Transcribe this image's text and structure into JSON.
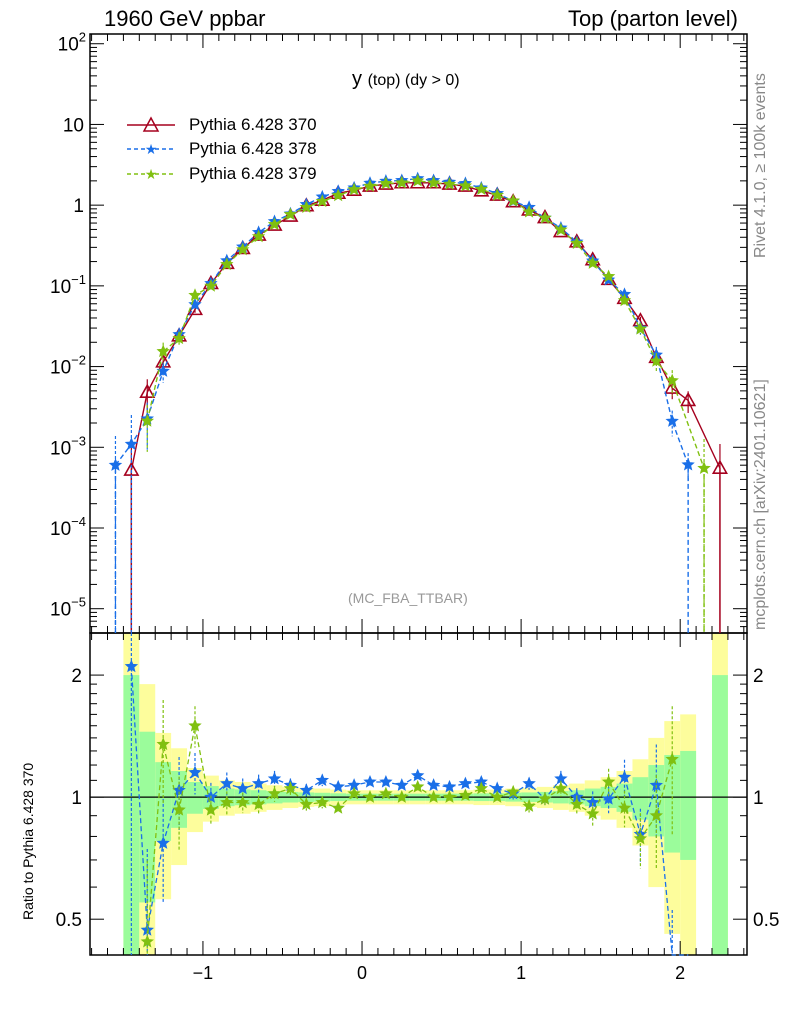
{
  "header": {
    "left": "1960 GeV ppbar",
    "right": "Top (parton level)"
  },
  "plot_title": {
    "main": "y",
    "rest": "(top) (dy > 0)"
  },
  "watermark": "(MC_FBA_TTBAR)",
  "side_text": {
    "top": "Rivet 4.1.0, ≥ 100k events",
    "bottom": "mcplots.cern.ch [arXiv:2401.10621]"
  },
  "ratio_ylabel": "Ratio to Pythia 6.428 370",
  "colors": {
    "ref": "#a5001e",
    "s378": "#1a6fe8",
    "s379": "#80c010",
    "band_inner": "#9bfc9b",
    "band_outer": "#fdfd9c"
  },
  "chart_data": [
    {
      "type": "line",
      "panel": "main",
      "title": "y (top) (dy > 0)",
      "yscale": "log",
      "xlim": [
        -1.71,
        2.42
      ],
      "ylim": [
        5e-06,
        132
      ],
      "x_ticks": [
        {
          "v": -1,
          "label": "−1"
        },
        {
          "v": 0,
          "label": "0"
        },
        {
          "v": 1,
          "label": "1"
        },
        {
          "v": 2,
          "label": "2"
        }
      ],
      "y_ticks": [
        {
          "exp": 2,
          "label": "10",
          "sup": "2"
        },
        {
          "exp": 1,
          "label": "10",
          "sup": ""
        },
        {
          "exp": 0,
          "label": "1",
          "sup": ""
        },
        {
          "exp": -1,
          "label": "10",
          "sup": "−1"
        },
        {
          "exp": -2,
          "label": "10",
          "sup": "−2"
        },
        {
          "exp": -3,
          "label": "10",
          "sup": "−3"
        },
        {
          "exp": -4,
          "label": "10",
          "sup": "−4"
        },
        {
          "exp": -5,
          "label": "10",
          "sup": "−5"
        }
      ],
      "legend_position": "top-left",
      "x": [
        -1.45,
        -1.35,
        -1.25,
        -1.15,
        -1.05,
        -0.95,
        -0.85,
        -0.75,
        -0.65,
        -0.55,
        -0.45,
        -0.35,
        -0.25,
        -0.15,
        -0.05,
        0.05,
        0.15,
        0.25,
        0.35,
        0.45,
        0.55,
        0.65,
        0.75,
        0.85,
        0.95,
        1.05,
        1.15,
        1.25,
        1.35,
        1.45,
        1.55,
        1.65,
        1.75,
        1.85,
        1.95,
        2.05,
        2.15,
        2.25
      ],
      "rel_unc": [
        1.0,
        0.45,
        0.22,
        0.16,
        0.09,
        0.065,
        0.05,
        0.045,
        0.04,
        0.035,
        0.03,
        0.027,
        0.025,
        0.022,
        0.02,
        0.02,
        0.02,
        0.02,
        0.02,
        0.02,
        0.02,
        0.02,
        0.022,
        0.022,
        0.025,
        0.027,
        0.03,
        0.035,
        0.04,
        0.05,
        0.06,
        0.08,
        0.12,
        0.2,
        0.27,
        0.3,
        null,
        1.0
      ],
      "series": [
        {
          "name": "Pythia 6.428 370",
          "key": "ref",
          "values": [
            0.00052,
            0.0048,
            0.0114,
            0.024,
            0.051,
            0.107,
            0.19,
            0.29,
            0.425,
            0.565,
            0.73,
            0.98,
            1.15,
            1.4,
            1.53,
            1.72,
            1.82,
            1.89,
            1.89,
            1.89,
            1.82,
            1.72,
            1.5,
            1.33,
            1.1,
            0.87,
            0.7,
            0.47,
            0.35,
            0.21,
            0.12,
            0.07,
            0.037,
            0.013,
            0.0054,
            0.0038,
            null,
            0.00055
          ]
        },
        {
          "name": "Pythia 6.428 378",
          "key": "s378",
          "ratio": [
            2.1,
            0.47,
            0.77,
            1.04,
            1.15,
            1.0,
            1.08,
            1.05,
            1.08,
            1.11,
            1.07,
            1.04,
            1.1,
            1.06,
            1.07,
            1.09,
            1.09,
            1.07,
            1.13,
            1.07,
            1.06,
            1.08,
            1.09,
            1.05,
            1.02,
            1.08,
            0.99,
            1.11,
            1.0,
            0.97,
            0.99,
            1.12,
            0.81,
            1.07,
            0.39,
            0.16,
            null,
            null
          ],
          "extra_points": [
            {
              "x": -1.55,
              "y": 0.0006
            }
          ]
        },
        {
          "name": "Pythia 6.428 379",
          "key": "s379",
          "ratio": [
            null,
            0.44,
            1.35,
            0.93,
            1.5,
            0.93,
            0.97,
            0.97,
            0.96,
            1.02,
            1.05,
            0.96,
            0.97,
            0.94,
            1.02,
            1.0,
            1.02,
            1.0,
            1.06,
            1.0,
            1.0,
            1.01,
            1.05,
            1.0,
            1.03,
            0.95,
            0.99,
            1.05,
            0.96,
            0.91,
            1.09,
            0.94,
            0.79,
            0.9,
            1.24,
            null,
            null,
            null
          ],
          "extra_points": [
            {
              "x": 2.15,
              "y": 0.00055
            }
          ]
        }
      ]
    },
    {
      "type": "line",
      "panel": "ratio",
      "ylabel": "Ratio to Pythia 6.428 370",
      "yscale": "log",
      "ylim": [
        0.408,
        2.54
      ],
      "y_ticks": [
        {
          "v": 2,
          "label": "2"
        },
        {
          "v": 1,
          "label": "1"
        },
        {
          "v": 0.5,
          "label": "0.5"
        }
      ]
    }
  ]
}
